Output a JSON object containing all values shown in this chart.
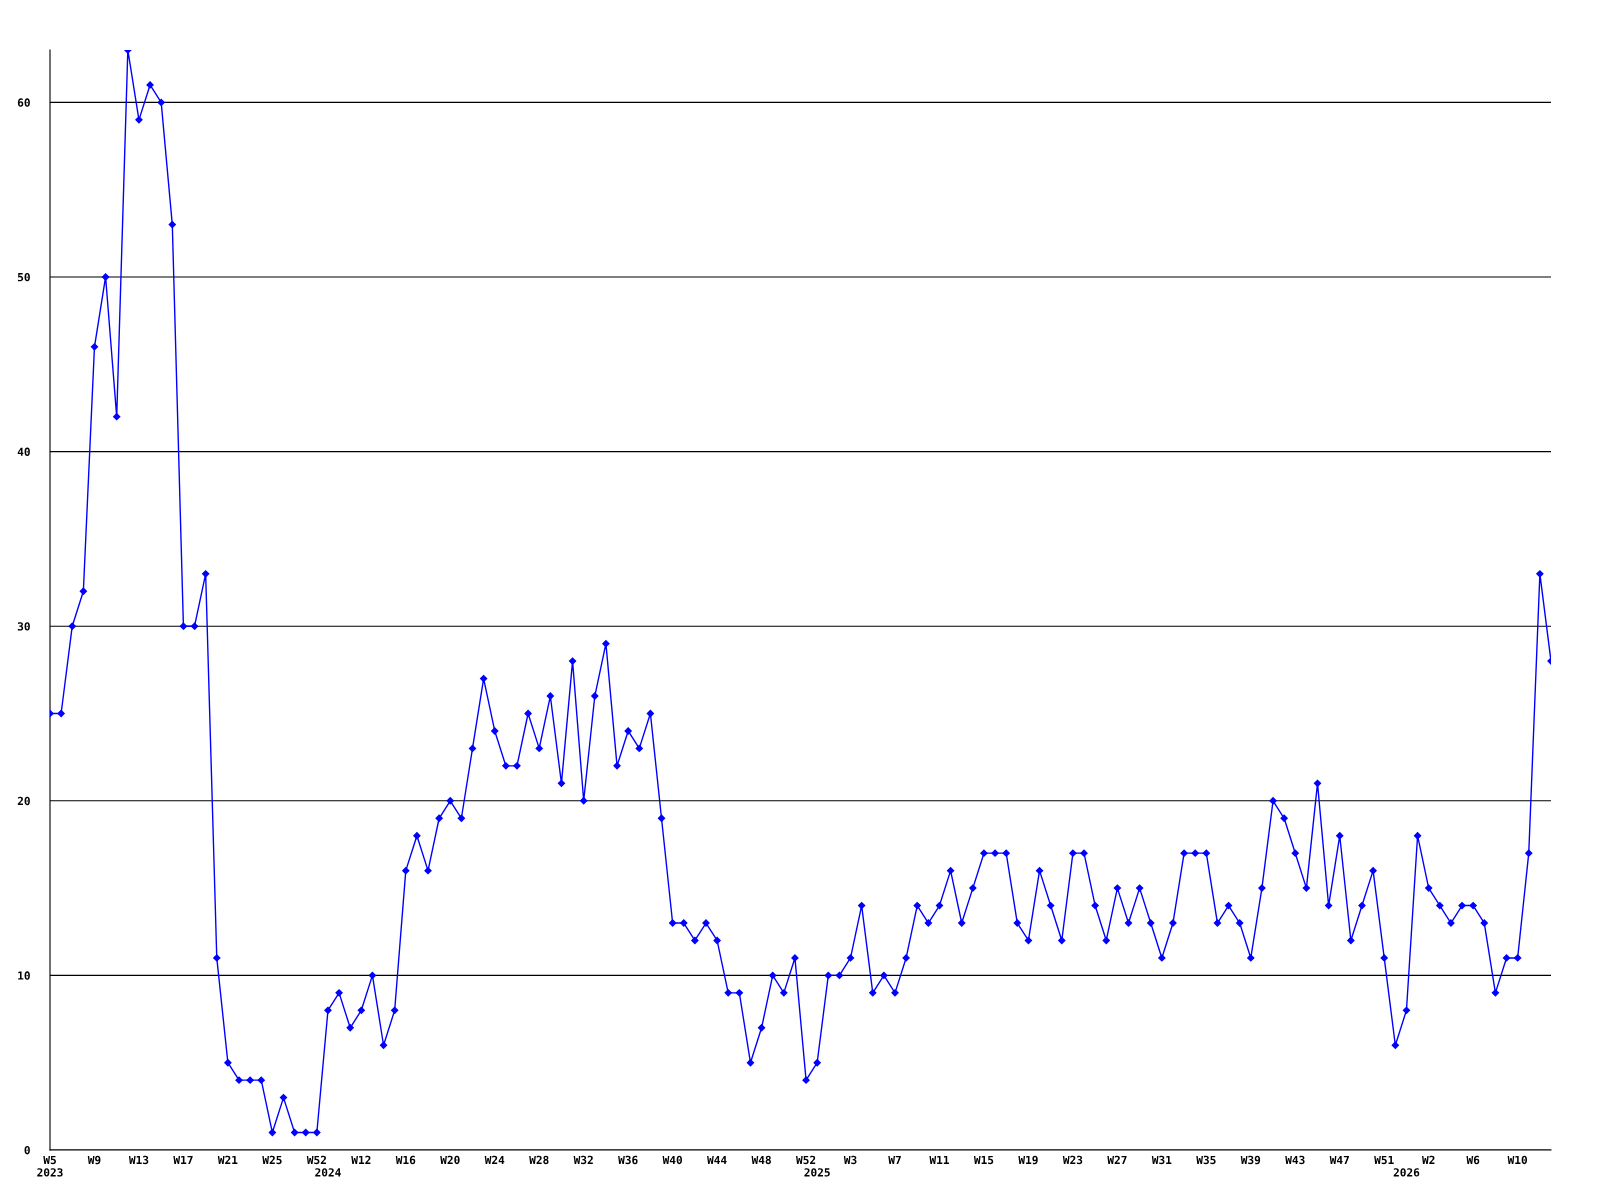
{
  "chart_data": {
    "type": "line",
    "categories": [
      "W5\n2023",
      null,
      null,
      null,
      "W9",
      null,
      null,
      null,
      "W13",
      null,
      null,
      null,
      "W17",
      null,
      null,
      null,
      "W21",
      null,
      null,
      null,
      "W25",
      null,
      null,
      null,
      "W52",
      "\n2024",
      null,
      null,
      "W12",
      null,
      null,
      null,
      "W16",
      null,
      null,
      null,
      "W20",
      null,
      null,
      null,
      "W24",
      null,
      null,
      null,
      "W28",
      null,
      null,
      null,
      "W32",
      null,
      null,
      null,
      "W36",
      null,
      null,
      null,
      "W40",
      null,
      null,
      null,
      "W44",
      null,
      null,
      null,
      "W48",
      null,
      null,
      null,
      "W52",
      "\n2025",
      null,
      null,
      "W3",
      null,
      null,
      null,
      "W7",
      null,
      null,
      null,
      "W11",
      null,
      null,
      null,
      "W15",
      null,
      null,
      null,
      "W19",
      null,
      null,
      null,
      "W23",
      null,
      null,
      null,
      "W27",
      null,
      null,
      null,
      "W31",
      null,
      null,
      null,
      "W35",
      null,
      null,
      null,
      "W39",
      null,
      null,
      null,
      "W43",
      null,
      null,
      null,
      "W47",
      null,
      null,
      null,
      "W51",
      null,
      "\n2026",
      null,
      "W2",
      null,
      null,
      null,
      "W6",
      null,
      null,
      null,
      "W10",
      null,
      null,
      null
    ],
    "series": [
      {
        "color": "#0000ff",
        "values": [
          25,
          25,
          30,
          32,
          46,
          50,
          42,
          63,
          59,
          61,
          60,
          53,
          30,
          30,
          33,
          11,
          5,
          4,
          4,
          4,
          1,
          3,
          1,
          1,
          1,
          8,
          9,
          7,
          8,
          10,
          6,
          8,
          16,
          18,
          16,
          19,
          20,
          19,
          23,
          27,
          24,
          22,
          22,
          25,
          23,
          26,
          21,
          28,
          20,
          26,
          29,
          22,
          24,
          23,
          25,
          19,
          13,
          13,
          12,
          13,
          12,
          9,
          9,
          5,
          7,
          10,
          9,
          11,
          4,
          5,
          10,
          10,
          11,
          14,
          9,
          10,
          9,
          11,
          14,
          13,
          14,
          16,
          13,
          15,
          17,
          17,
          17,
          13,
          12,
          16,
          14,
          12,
          17,
          17,
          14,
          12,
          15,
          13,
          15,
          13,
          11,
          13,
          17,
          17,
          17,
          13,
          14,
          13,
          11,
          15,
          20,
          19,
          17,
          15,
          21,
          14,
          18,
          12,
          14,
          16,
          11,
          6,
          8,
          18,
          15,
          14,
          13,
          14,
          14,
          13,
          9,
          11,
          11,
          17,
          33,
          28
        ]
      }
    ],
    "ylim": [
      0,
      63
    ],
    "yticks": [
      0,
      10,
      20,
      30,
      40,
      50,
      60
    ],
    "grid": "y",
    "marker": "diamond",
    "line_style": "solid",
    "legend": false
  }
}
